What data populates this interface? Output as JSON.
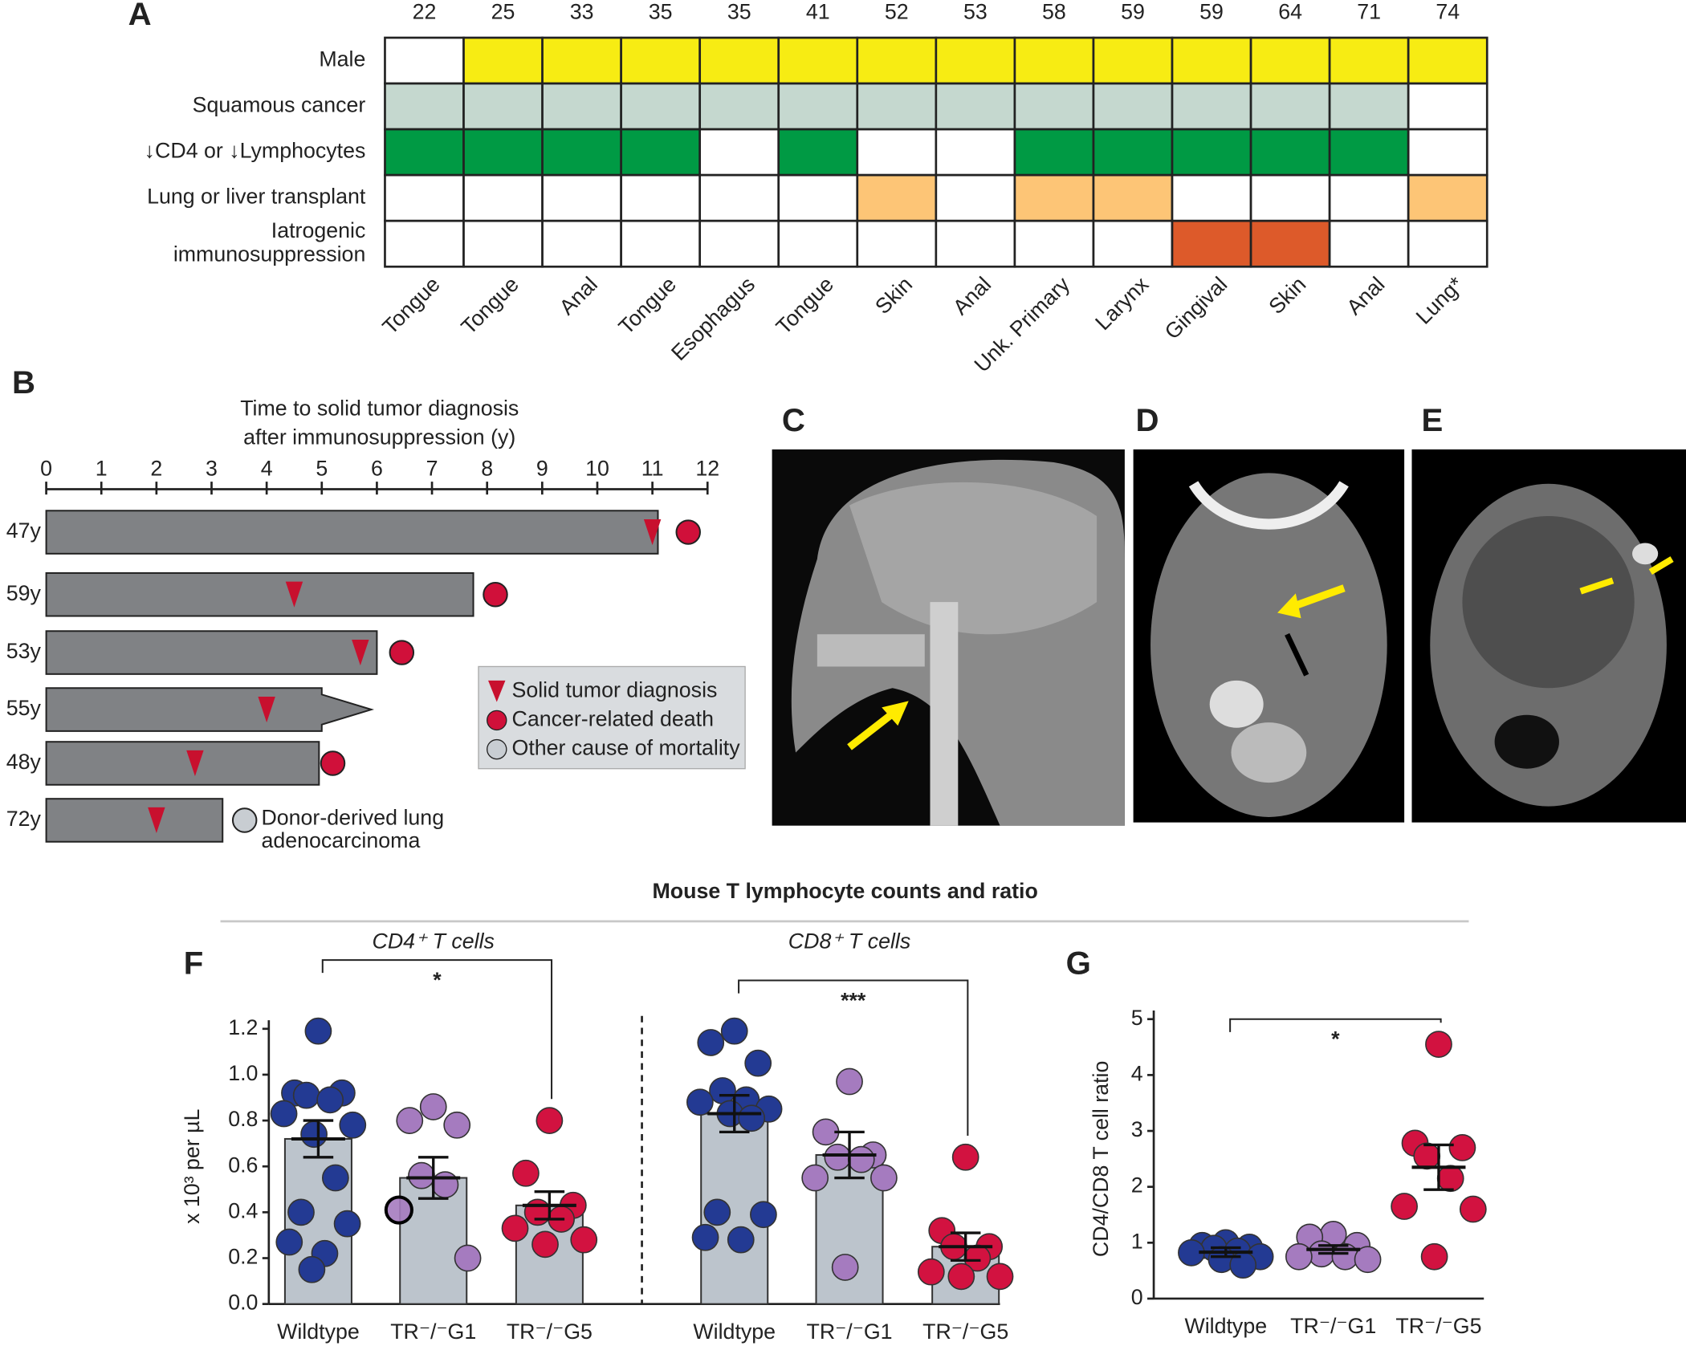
{
  "section_title": "Mouse T lymphocyte counts and ratio",
  "images": [
    {
      "label": "C"
    },
    {
      "label": "D"
    },
    {
      "label": "E"
    }
  ],
  "chart_data": [
    {
      "type": "grid",
      "label": "A",
      "columns": [
        22,
        25,
        33,
        35,
        35,
        41,
        52,
        53,
        58,
        59,
        59,
        64,
        71,
        74
      ],
      "column_labels": [
        "Tongue",
        "Tongue",
        "Anal",
        "Tongue",
        "Esophagus",
        "Tongue",
        "Skin",
        "Anal",
        "Unk. Primary",
        "Larynx",
        "Gingival",
        "Skin",
        "Anal",
        "Lung*"
      ],
      "rows": [
        {
          "name": "Male",
          "color": "#f7ec13",
          "values": [
            0,
            1,
            1,
            1,
            1,
            1,
            1,
            1,
            1,
            1,
            1,
            1,
            1,
            1
          ]
        },
        {
          "name": "Squamous cancer",
          "color": "#c5d8cf",
          "values": [
            1,
            1,
            1,
            1,
            1,
            1,
            1,
            1,
            1,
            1,
            1,
            1,
            1,
            0
          ]
        },
        {
          "name": "↓CD4 or ↓Lymphocytes",
          "color": "#009a44",
          "values": [
            1,
            1,
            1,
            1,
            0,
            1,
            0,
            0,
            1,
            1,
            1,
            1,
            1,
            0
          ]
        },
        {
          "name": "Lung or liver transplant",
          "color": "#fdc576",
          "values": [
            0,
            0,
            0,
            0,
            0,
            0,
            1,
            0,
            1,
            1,
            0,
            0,
            0,
            1
          ]
        },
        {
          "lines": [
            "Iatrogenic",
            "immunosuppression"
          ],
          "color": "#dd5a2a",
          "values": [
            0,
            0,
            0,
            0,
            0,
            0,
            0,
            0,
            0,
            0,
            1,
            1,
            0,
            0
          ]
        }
      ]
    },
    {
      "type": "timeline",
      "label": "B",
      "title": [
        "Time to solid tumor diagnosis",
        "after immunosuppression (y)"
      ],
      "xlim": [
        0,
        12
      ],
      "xticks": [
        0,
        1,
        2,
        3,
        4,
        5,
        6,
        7,
        8,
        9,
        10,
        11,
        12
      ],
      "bar_color": "#808285",
      "legend": [
        {
          "name": "Solid tumor diagnosis",
          "color": "#c8102e"
        },
        {
          "name": "Cancer-related death",
          "color": "#d0103a"
        },
        {
          "name": "Other cause of mortality",
          "color": "#c8cdd2"
        }
      ],
      "rows": [
        {
          "name": "47y",
          "end": 11.1,
          "diagnosis": 11.0,
          "outcome": 1,
          "outcome_at": 11.65
        },
        {
          "name": "59y",
          "end": 7.75,
          "diagnosis": 4.5,
          "outcome": 1,
          "outcome_at": 8.15
        },
        {
          "name": "53y",
          "end": 6.0,
          "diagnosis": 5.7,
          "outcome": 1,
          "outcome_at": 6.45
        },
        {
          "name": "55y",
          "end": 5.0,
          "diagnosis": 4.0,
          "arrow_to": 5.9
        },
        {
          "name": "48y",
          "end": 4.95,
          "diagnosis": 2.7,
          "outcome": 1,
          "outcome_at": 5.2
        },
        {
          "name": "72y",
          "end": 3.2,
          "diagnosis": 2.0,
          "outcome": 2,
          "outcome_at": 3.6,
          "annotation": [
            "Donor-derived lung",
            "adenocarcinoma"
          ]
        }
      ]
    },
    {
      "type": "dot-bar",
      "label": "F",
      "bars": true,
      "ylabel": "x 10³ per µL",
      "ylim": [
        0,
        1.2
      ],
      "yticks": [
        {
          "value": 0,
          "label": "0.0"
        },
        0.2,
        0.4,
        0.6,
        0.8,
        {
          "value": 1,
          "label": "1.0"
        },
        1.2
      ],
      "panels": [
        {
          "title": "CD4⁺ T cells",
          "significance": "*",
          "groups": [
            {
              "name": "Wildtype",
              "color": "#233a93",
              "mean": 0.72,
              "sem": 0.08,
              "values": [
                1.19,
                0.92,
                0.92,
                0.91,
                0.89,
                0.83,
                0.78,
                0.74,
                0.55,
                0.4,
                0.35,
                0.27,
                0.22,
                0.15
              ]
            },
            {
              "name": "TR⁻/⁻G1",
              "color": "#a57bbf",
              "mean": 0.55,
              "sem": 0.09,
              "values": [
                0.86,
                0.8,
                0.78,
                0.56,
                0.52,
                0.41,
                0.2
              ],
              "outlined": [
                5
              ]
            },
            {
              "name": "TR⁻/⁻G5",
              "color": "#d21240",
              "mean": 0.43,
              "sem": 0.06,
              "values": [
                0.8,
                0.57,
                0.43,
                0.4,
                0.37,
                0.33,
                0.28,
                0.26
              ]
            }
          ]
        },
        {
          "title": "CD8⁺ T cells",
          "significance": "***",
          "groups": [
            {
              "name": "Wildtype",
              "color": "#233a93",
              "mean": 0.83,
              "sem": 0.08,
              "values": [
                1.19,
                1.14,
                1.05,
                0.93,
                0.89,
                0.88,
                0.85,
                0.83,
                0.81,
                0.4,
                0.39,
                0.29,
                0.28
              ]
            },
            {
              "name": "TR⁻/⁻G1",
              "color": "#a57bbf",
              "mean": 0.65,
              "sem": 0.1,
              "values": [
                0.97,
                0.75,
                0.65,
                0.64,
                0.63,
                0.55,
                0.55,
                0.16
              ]
            },
            {
              "name": "TR⁻/⁻G5",
              "color": "#d21240",
              "mean": 0.25,
              "sem": 0.06,
              "values": [
                0.64,
                0.32,
                0.25,
                0.25,
                0.2,
                0.14,
                0.12,
                0.12
              ]
            }
          ]
        }
      ]
    },
    {
      "type": "dot-bar",
      "label": "G",
      "bars": false,
      "ylabel": "CD4/CD8 T cell ratio",
      "ylim": [
        0,
        5
      ],
      "yticks": [
        0,
        1,
        2,
        3,
        4,
        5
      ],
      "panels": [
        {
          "significance": "*",
          "groups": [
            {
              "name": "Wildtype",
              "color": "#233a93",
              "mean": 0.83,
              "sem": 0.08,
              "values": [
                1.0,
                0.95,
                0.92,
                0.9,
                0.85,
                0.82,
                0.75,
                0.7,
                0.6
              ]
            },
            {
              "name": "TR⁻/⁻G1",
              "color": "#a57bbf",
              "mean": 0.88,
              "sem": 0.07,
              "values": [
                1.15,
                1.1,
                0.95,
                0.8,
                0.75,
                0.75,
                0.7
              ]
            },
            {
              "name": "TR⁻/⁻G5",
              "color": "#d21240",
              "mean": 2.35,
              "sem": 0.4,
              "values": [
                4.55,
                2.78,
                2.7,
                2.55,
                2.15,
                1.65,
                1.6,
                0.75
              ]
            }
          ]
        }
      ]
    }
  ]
}
